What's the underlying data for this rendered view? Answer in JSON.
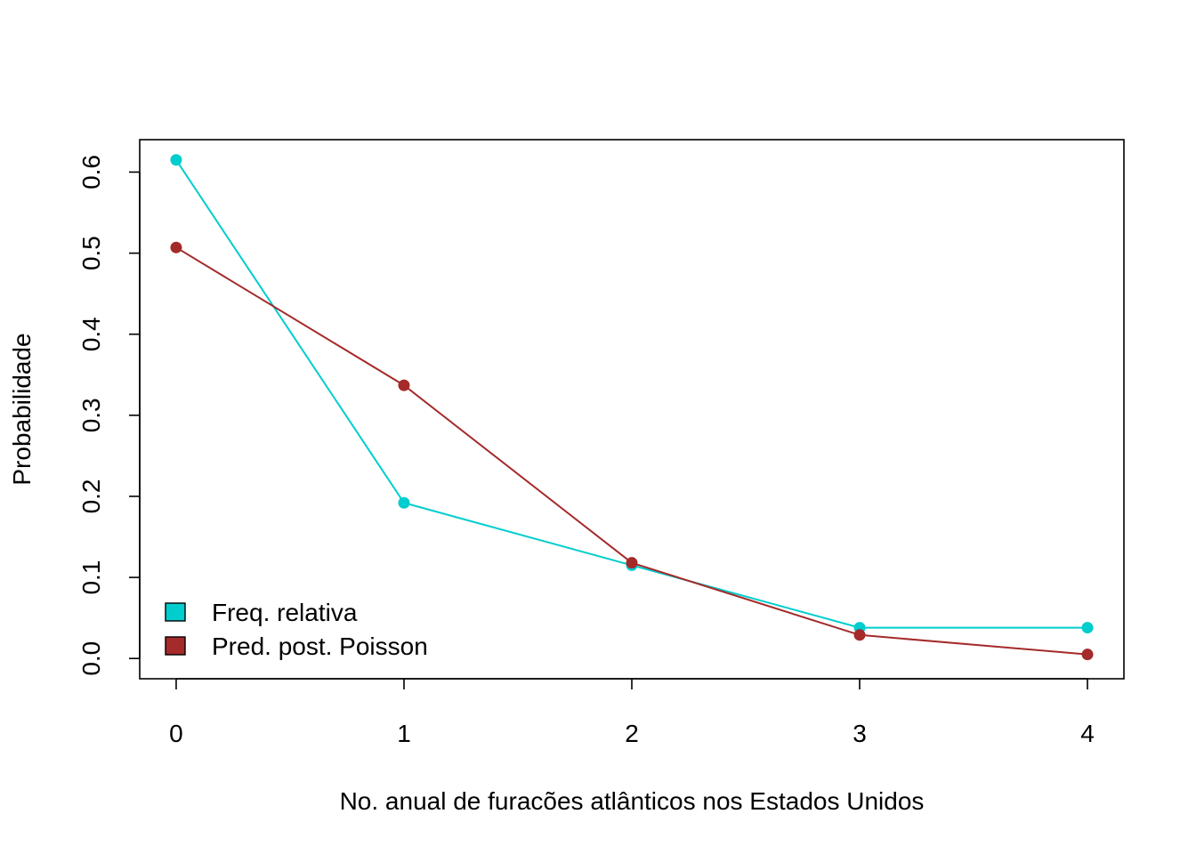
{
  "chart_data": {
    "type": "line",
    "title": "",
    "xlabel": "No. anual de furacões atlânticos nos Estados Unidos",
    "ylabel": "Probabilidade",
    "x": [
      0,
      1,
      2,
      3,
      4
    ],
    "xticks": [
      "0",
      "1",
      "2",
      "3",
      "4"
    ],
    "yticks": [
      "0.0",
      "0.1",
      "0.2",
      "0.3",
      "0.4",
      "0.5",
      "0.6"
    ],
    "xlim": [
      -0.16,
      4.16
    ],
    "ylim": [
      -0.025,
      0.64
    ],
    "grid": false,
    "legend_position": "bottom-left",
    "series": [
      {
        "name": "Freq. relativa",
        "color": "#00CDCD",
        "values": [
          0.615,
          0.192,
          0.115,
          0.038,
          0.038
        ]
      },
      {
        "name": "Pred. post. Poisson",
        "color": "#A52A2A",
        "values": [
          0.507,
          0.337,
          0.118,
          0.029,
          0.005
        ]
      }
    ]
  }
}
